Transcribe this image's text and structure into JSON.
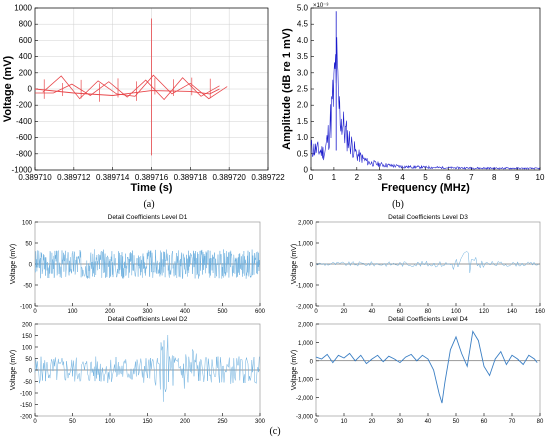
{
  "colors": {
    "red": "#e8474b",
    "blue_dark": "#1a1acc",
    "blue_light": "#6aaede",
    "blue_mid": "#3b7fc4"
  },
  "chart_data": [
    {
      "id": "a",
      "type": "line",
      "caption": "(a)",
      "xlabel": "Time (s)",
      "ylabel": "Voltage (mV)",
      "xlim": [
        0.38971,
        0.389722
      ],
      "ylim": [
        -1000,
        1000
      ],
      "xticks": [
        "0.389710",
        "0.389712",
        "0.389714",
        "0.389716",
        "0.389718",
        "0.389720",
        "0.389722"
      ],
      "yticks": [
        "-1000",
        "-800",
        "-600",
        "-400",
        "-200",
        "0",
        "200",
        "400",
        "600",
        "800",
        "1000"
      ],
      "spike": {
        "x": 0.389716,
        "ymin": -820,
        "ymax": 870
      },
      "segments": [
        [
          -50,
          -50,
          60,
          -80,
          90,
          -100,
          110,
          -130,
          140,
          -90,
          40
        ],
        [
          -40,
          160,
          -120,
          100,
          -60,
          -90,
          170,
          -60,
          70,
          -120,
          30
        ]
      ],
      "baseline": [
        [
          0.38971,
          0
        ],
        [
          0.389712,
          -50
        ],
        [
          0.389714,
          -80
        ],
        [
          0.389716,
          -20
        ],
        [
          0.389718,
          -30
        ],
        [
          0.389719,
          -60
        ],
        [
          0.3897195,
          0
        ]
      ]
    },
    {
      "id": "b",
      "type": "line",
      "caption": "(b)",
      "xlabel": "Frequency (MHz)",
      "ylabel": "Amplitude (dB re 1 mV)",
      "scale_note": "×10⁻³",
      "xlim": [
        0,
        10
      ],
      "ylim": [
        0,
        5.0
      ],
      "xticks": [
        "0",
        "1",
        "2",
        "3",
        "4",
        "5",
        "6",
        "7",
        "8",
        "9",
        "10"
      ],
      "yticks": [
        "0",
        "0.5",
        "1.0",
        "1.5",
        "2.0",
        "2.5",
        "3.0",
        "3.5",
        "4.0",
        "4.5",
        "5.0"
      ],
      "envelope": [
        [
          0,
          1.0
        ],
        [
          0.3,
          0.9
        ],
        [
          0.6,
          0.8
        ],
        [
          0.8,
          1.8
        ],
        [
          1.0,
          3.5
        ],
        [
          1.1,
          4.9
        ],
        [
          1.2,
          3.0
        ],
        [
          1.35,
          2.2
        ],
        [
          1.5,
          1.7
        ],
        [
          1.7,
          1.3
        ],
        [
          2.0,
          0.7
        ],
        [
          2.5,
          0.35
        ],
        [
          3.0,
          0.25
        ],
        [
          4.0,
          0.15
        ],
        [
          6.0,
          0.1
        ],
        [
          8.0,
          0.08
        ],
        [
          10.0,
          0.07
        ]
      ]
    },
    {
      "id": "d1",
      "type": "line",
      "title": "Detail Coefficients Level D1",
      "ylabel": "Voltage (mV)",
      "xlim": [
        0,
        600
      ],
      "ylim": [
        -100,
        100
      ],
      "xticks": [
        "0",
        "100",
        "200",
        "300",
        "400",
        "500",
        "600"
      ],
      "yticks": [
        "-100",
        "-50",
        "0",
        "50",
        "100"
      ],
      "n": 600,
      "amp": 35,
      "env": [
        [
          0,
          1
        ],
        [
          600,
          1
        ]
      ]
    },
    {
      "id": "d2",
      "type": "line",
      "title": "Detail Coefficients Level D2",
      "ylabel": "Voltage (mV)",
      "xlim": [
        0,
        300
      ],
      "ylim": [
        -200,
        200
      ],
      "xticks": [
        "0",
        "50",
        "100",
        "150",
        "200",
        "250",
        "300"
      ],
      "yticks": [
        "-200",
        "-150",
        "-100",
        "-50",
        "0",
        "50",
        "100",
        "150",
        "200"
      ],
      "n": 300,
      "amp": 60,
      "env": [
        [
          0,
          1
        ],
        [
          160,
          1
        ],
        [
          175,
          3
        ],
        [
          190,
          1
        ],
        [
          210,
          2.5
        ],
        [
          220,
          1
        ],
        [
          300,
          1
        ]
      ]
    },
    {
      "id": "d3",
      "type": "line",
      "title": "Detail Coefficients Level D3",
      "ylabel": "Voltage (mV)",
      "xlim": [
        0,
        160
      ],
      "ylim": [
        -2000,
        2000
      ],
      "xticks": [
        "0",
        "20",
        "40",
        "60",
        "80",
        "100",
        "120",
        "140",
        "160"
      ],
      "yticks": [
        "-2,000",
        "-1,000",
        "0",
        "1,000",
        "2,000"
      ],
      "n": 150,
      "amp": 100,
      "env": [
        [
          0,
          1
        ],
        [
          95,
          1.5
        ],
        [
          104,
          6
        ],
        [
          108,
          14
        ],
        [
          112,
          4
        ],
        [
          120,
          1.5
        ],
        [
          150,
          1
        ]
      ]
    },
    {
      "id": "d4",
      "type": "line",
      "title": "Detail Coefficients Level D4",
      "ylabel": "Voltage (mV)",
      "xlim": [
        0,
        80
      ],
      "ylim": [
        -3000,
        2000
      ],
      "xticks": [
        "0",
        "10",
        "20",
        "30",
        "40",
        "50",
        "60",
        "70",
        "80"
      ],
      "yticks": [
        "-3,000",
        "-2,000",
        "-1,000",
        "0",
        "1,000",
        "2,000"
      ],
      "points": [
        [
          0,
          200
        ],
        [
          2,
          100
        ],
        [
          4,
          350
        ],
        [
          6,
          -100
        ],
        [
          8,
          300
        ],
        [
          10,
          150
        ],
        [
          12,
          400
        ],
        [
          14,
          0
        ],
        [
          16,
          300
        ],
        [
          18,
          -150
        ],
        [
          20,
          100
        ],
        [
          22,
          300
        ],
        [
          24,
          -50
        ],
        [
          26,
          250
        ],
        [
          28,
          100
        ],
        [
          30,
          -100
        ],
        [
          32,
          200
        ],
        [
          34,
          350
        ],
        [
          36,
          0
        ],
        [
          38,
          300
        ],
        [
          40,
          100
        ],
        [
          42,
          -500
        ],
        [
          44,
          -1800
        ],
        [
          45,
          -2300
        ],
        [
          46,
          -1200
        ],
        [
          48,
          600
        ],
        [
          50,
          1300
        ],
        [
          52,
          400
        ],
        [
          54,
          -300
        ],
        [
          56,
          1600
        ],
        [
          58,
          1100
        ],
        [
          60,
          -300
        ],
        [
          62,
          -800
        ],
        [
          64,
          100
        ],
        [
          66,
          500
        ],
        [
          68,
          -200
        ],
        [
          70,
          300
        ],
        [
          72,
          100
        ],
        [
          74,
          -200
        ],
        [
          76,
          300
        ],
        [
          78,
          100
        ],
        [
          79,
          -100
        ]
      ]
    }
  ],
  "caption_c": "(c)"
}
